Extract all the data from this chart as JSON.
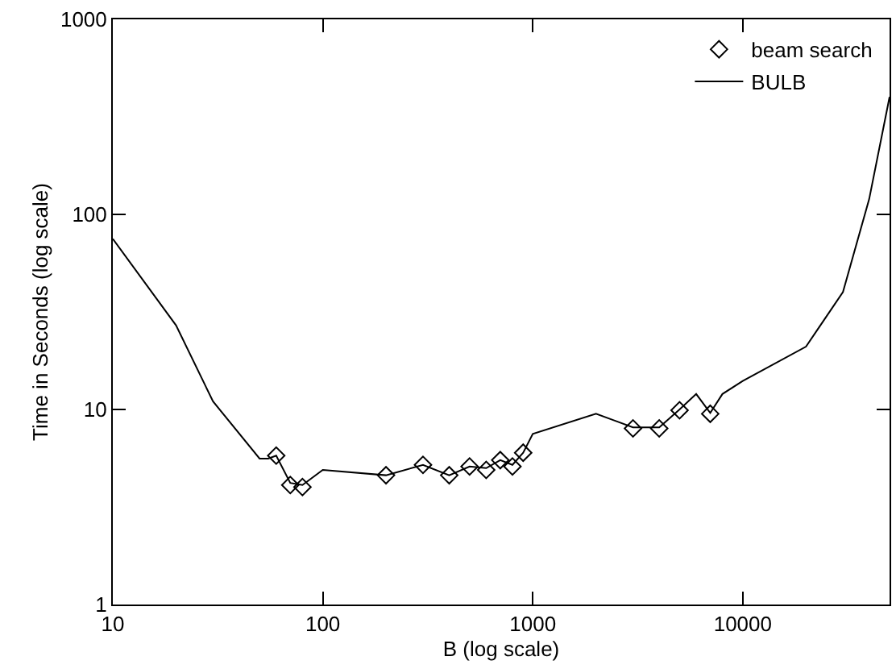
{
  "chart_data": {
    "type": "line",
    "xlabel": "B (log scale)",
    "ylabel": "Time in Seconds (log scale)",
    "log": "xy",
    "xlim": [
      10,
      50000
    ],
    "xticks": [
      10,
      100,
      1000,
      10000
    ],
    "ylim": [
      1,
      1000
    ],
    "yticks": [
      1,
      10,
      100,
      1000
    ],
    "grid": false,
    "legend": "top right",
    "series": [
      {
        "name": "beam search",
        "type": "scatter",
        "marker": "diamond",
        "color": "#000000",
        "x": [
          60,
          70,
          80,
          200,
          300,
          400,
          500,
          600,
          700,
          800,
          900,
          3000,
          4000,
          5000,
          7000
        ],
        "values": [
          5.8,
          4.1,
          4.0,
          4.6,
          5.2,
          4.6,
          5.1,
          4.9,
          5.5,
          5.1,
          6.0,
          8.0,
          8.0,
          9.9,
          9.5
        ]
      },
      {
        "name": "BULB",
        "line_style": "solid",
        "color": "#000000",
        "x": [
          10,
          20,
          30,
          50,
          55,
          60,
          70,
          80,
          100,
          200,
          300,
          400,
          500,
          600,
          700,
          800,
          900,
          1000,
          2000,
          3000,
          4000,
          5000,
          6000,
          7000,
          8000,
          10000,
          20000,
          30000,
          40000,
          50000
        ],
        "values": [
          75,
          27,
          11,
          5.6,
          5.6,
          5.8,
          4.2,
          4.1,
          4.9,
          4.6,
          5.2,
          4.6,
          5.1,
          5.0,
          5.5,
          5.2,
          6.0,
          7.5,
          9.5,
          8.1,
          8.1,
          10,
          12,
          9.6,
          12,
          14,
          21,
          40,
          120,
          400
        ]
      }
    ]
  }
}
